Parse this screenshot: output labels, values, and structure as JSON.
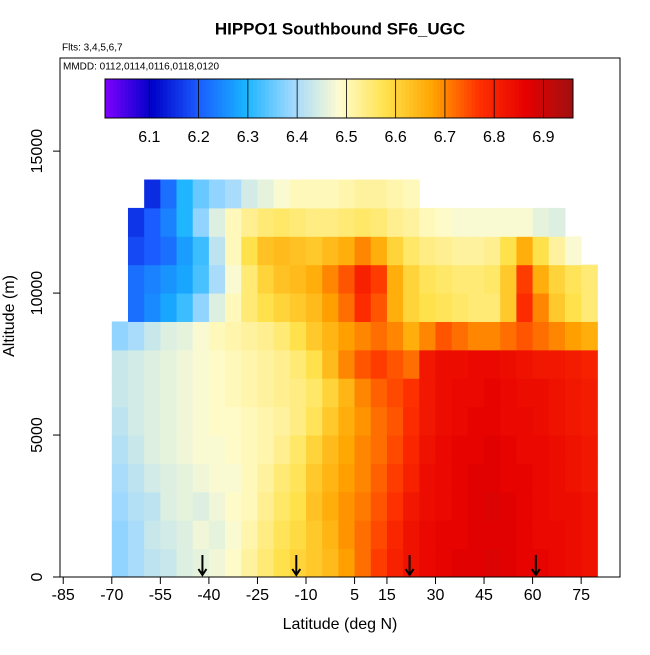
{
  "chart_data": {
    "type": "heatmap",
    "title": "HIPPO1 Southbound SF6_UGC",
    "subtitle": "Flts: 3,4,5,6,7",
    "annotation": "MMDD: 0112,0114,0116,0118,0120",
    "xlabel": "Latitude (deg N)",
    "ylabel": "Altitude (m)",
    "xlim": [
      -86,
      87
    ],
    "ylim": [
      0,
      18280
    ],
    "xticks": [
      -85,
      -70,
      -55,
      -40,
      -25,
      -10,
      5,
      15,
      30,
      45,
      60,
      75
    ],
    "yticks": [
      0,
      5000,
      10000,
      15000
    ],
    "x_bins": [
      -70,
      -65,
      -60,
      -55,
      -50,
      -45,
      -40,
      -35,
      -30,
      -25,
      -20,
      -15,
      -10,
      -5,
      0,
      5,
      10,
      15,
      20,
      25,
      30,
      35,
      40,
      45,
      50,
      55,
      60,
      65,
      70,
      75,
      80
    ],
    "y_bins": [
      0,
      1000,
      2000,
      3000,
      4000,
      5000,
      6000,
      7000,
      8000,
      9000,
      10000,
      11000,
      12000,
      13000,
      14000
    ],
    "values": [
      [
        6.38,
        6.4,
        6.42,
        6.43,
        6.45,
        6.46,
        6.47,
        6.49,
        6.52,
        6.55,
        6.58,
        6.6,
        6.62,
        6.64,
        6.68,
        6.72,
        6.76,
        6.8,
        6.83,
        6.85,
        6.86,
        6.87,
        6.87,
        6.88,
        6.87,
        6.86,
        6.86,
        6.85,
        6.84,
        6.83
      ],
      [
        6.38,
        6.4,
        6.43,
        6.44,
        6.45,
        6.47,
        6.46,
        6.48,
        6.51,
        6.54,
        6.57,
        6.59,
        6.62,
        6.65,
        6.69,
        6.72,
        6.75,
        6.79,
        6.83,
        6.85,
        6.86,
        6.86,
        6.87,
        6.87,
        6.87,
        6.86,
        6.85,
        6.85,
        6.84,
        6.83
      ],
      [
        6.39,
        6.41,
        6.42,
        6.45,
        6.46,
        6.45,
        6.47,
        6.49,
        6.5,
        6.53,
        6.56,
        6.58,
        6.63,
        6.66,
        6.69,
        6.71,
        6.74,
        6.77,
        6.82,
        6.84,
        6.85,
        6.86,
        6.87,
        6.88,
        6.87,
        6.86,
        6.85,
        6.84,
        6.84,
        6.83
      ],
      [
        6.4,
        6.42,
        6.44,
        6.45,
        6.46,
        6.47,
        6.48,
        6.48,
        6.5,
        6.52,
        6.55,
        6.57,
        6.62,
        6.65,
        6.68,
        6.7,
        6.73,
        6.76,
        6.8,
        6.84,
        6.85,
        6.86,
        6.87,
        6.87,
        6.86,
        6.86,
        6.85,
        6.84,
        6.83,
        6.82
      ],
      [
        6.41,
        6.43,
        6.45,
        6.46,
        6.47,
        6.48,
        6.48,
        6.49,
        6.5,
        6.51,
        6.53,
        6.56,
        6.6,
        6.64,
        6.67,
        6.7,
        6.72,
        6.75,
        6.79,
        6.83,
        6.85,
        6.86,
        6.86,
        6.87,
        6.86,
        6.85,
        6.85,
        6.84,
        6.83,
        6.82
      ],
      [
        6.42,
        6.44,
        6.45,
        6.46,
        6.47,
        6.48,
        6.49,
        6.49,
        6.5,
        6.51,
        6.52,
        6.54,
        6.57,
        6.62,
        6.66,
        6.69,
        6.72,
        6.74,
        6.78,
        6.82,
        6.84,
        6.85,
        6.86,
        6.86,
        6.85,
        6.85,
        6.84,
        6.83,
        6.82,
        6.81
      ],
      [
        6.43,
        6.44,
        6.45,
        6.46,
        6.47,
        6.48,
        6.49,
        6.5,
        6.51,
        6.52,
        6.53,
        6.54,
        6.56,
        6.6,
        6.65,
        6.7,
        6.73,
        6.75,
        6.77,
        6.82,
        6.84,
        6.85,
        6.85,
        6.86,
        6.85,
        6.84,
        6.84,
        6.83,
        6.82,
        6.81
      ],
      [
        6.43,
        6.44,
        6.45,
        6.46,
        6.47,
        6.48,
        6.49,
        6.5,
        6.51,
        6.52,
        6.53,
        6.55,
        6.58,
        6.64,
        6.7,
        6.74,
        6.76,
        6.74,
        6.72,
        6.82,
        6.84,
        6.84,
        6.85,
        6.85,
        6.84,
        6.83,
        6.82,
        6.82,
        6.81,
        6.8
      ],
      [
        6.38,
        6.4,
        6.43,
        6.45,
        6.46,
        6.48,
        6.5,
        6.51,
        6.52,
        6.53,
        6.55,
        6.58,
        6.62,
        6.65,
        6.68,
        6.7,
        6.72,
        6.7,
        6.66,
        6.7,
        6.74,
        6.72,
        6.7,
        6.7,
        6.72,
        6.74,
        6.72,
        6.7,
        6.68,
        6.66
      ],
      [
        null,
        6.22,
        6.25,
        6.28,
        6.32,
        6.38,
        6.45,
        6.5,
        6.55,
        6.58,
        6.6,
        6.62,
        6.64,
        6.68,
        6.72,
        6.78,
        6.74,
        6.66,
        6.6,
        6.58,
        6.57,
        6.56,
        6.55,
        6.55,
        6.62,
        6.78,
        6.7,
        6.62,
        6.58,
        6.55
      ],
      [
        null,
        6.22,
        6.24,
        6.26,
        6.28,
        6.33,
        6.4,
        6.48,
        6.55,
        6.6,
        6.63,
        6.64,
        6.66,
        6.7,
        6.74,
        6.8,
        6.76,
        6.66,
        6.6,
        6.57,
        6.56,
        6.55,
        6.55,
        6.56,
        6.62,
        6.76,
        6.66,
        6.6,
        6.57,
        6.55
      ],
      [
        null,
        6.18,
        6.2,
        6.22,
        6.27,
        6.32,
        6.42,
        6.5,
        6.58,
        6.63,
        6.64,
        6.63,
        6.62,
        6.64,
        6.66,
        6.7,
        6.66,
        6.6,
        6.56,
        6.54,
        6.53,
        6.52,
        6.52,
        6.53,
        6.58,
        6.66,
        6.58,
        6.52,
        6.48,
        null
      ],
      [
        null,
        6.16,
        6.2,
        6.24,
        6.3,
        6.38,
        6.45,
        6.5,
        6.53,
        6.55,
        6.56,
        6.55,
        6.54,
        6.54,
        6.55,
        6.56,
        6.55,
        6.53,
        6.52,
        6.5,
        6.49,
        6.48,
        6.48,
        6.48,
        6.48,
        6.48,
        6.46,
        6.45,
        null,
        null
      ],
      [
        null,
        null,
        6.15,
        6.22,
        6.3,
        6.35,
        6.38,
        6.4,
        6.44,
        6.46,
        6.48,
        6.5,
        6.5,
        6.5,
        6.51,
        6.52,
        6.52,
        6.51,
        6.5,
        null,
        null,
        null,
        null,
        null,
        null,
        null,
        null,
        null,
        null,
        null
      ]
    ],
    "clim": [
      6.01,
      6.96
    ],
    "cticks": [
      6.1,
      6.2,
      6.3,
      6.4,
      6.5,
      6.6,
      6.7,
      6.8,
      6.9
    ],
    "colors": [
      "#7f00ff",
      "#0000c8",
      "#1a5cff",
      "#19b4ff",
      "#9fd8ff",
      "#fffcd0",
      "#ffe14b",
      "#ffa500",
      "#ff3000",
      "#e60000",
      "#a01010"
    ],
    "arrows": [
      -42,
      -13,
      22,
      61
    ]
  }
}
